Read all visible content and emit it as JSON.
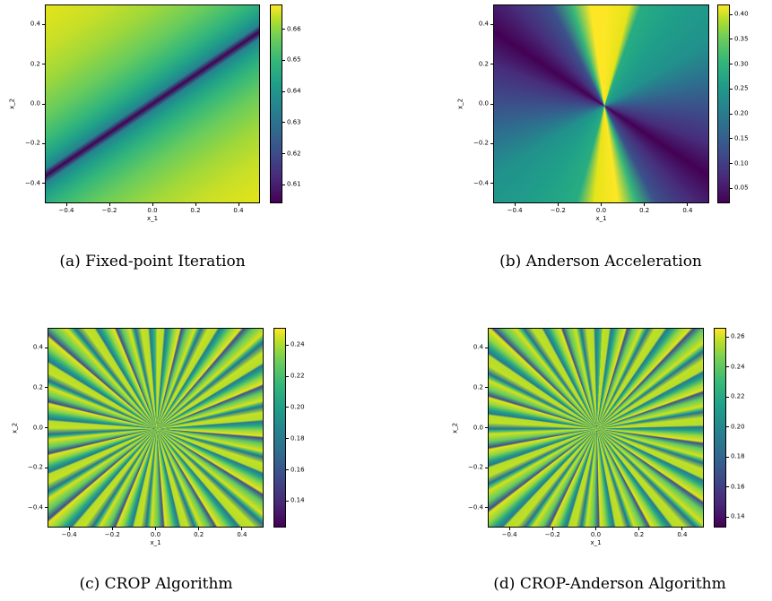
{
  "chart_data": [
    {
      "type": "heatmap",
      "panel": "a",
      "caption": "(a) Fixed-point Iteration",
      "xlabel": "x_1",
      "ylabel": "x_2",
      "xlim": [
        -0.5,
        0.5
      ],
      "ylim": [
        -0.5,
        0.5
      ],
      "x_ticks": [
        "−0.4",
        "−0.2",
        "0.0",
        "0.2",
        "0.4"
      ],
      "y_ticks": [
        "0.4",
        "0.2",
        "0.0",
        "−0.2",
        "−0.4"
      ],
      "colormap": "viridis",
      "colorbar_range": [
        0.604,
        0.668
      ],
      "colorbar_ticks": [
        "0.66",
        "0.65",
        "0.64",
        "0.63",
        "0.62",
        "0.61"
      ]
    },
    {
      "type": "heatmap",
      "panel": "b",
      "caption": "(b) Anderson Acceleration",
      "xlabel": "x_1",
      "ylabel": "x_2",
      "xlim": [
        -0.5,
        0.5
      ],
      "ylim": [
        -0.5,
        0.5
      ],
      "x_ticks": [
        "−0.4",
        "−0.2",
        "0.0",
        "0.2",
        "0.4"
      ],
      "y_ticks": [
        "0.4",
        "0.2",
        "0.0",
        "−0.2",
        "−0.4"
      ],
      "colormap": "viridis",
      "colorbar_range": [
        0.02,
        0.42
      ],
      "colorbar_ticks": [
        "0.40",
        "0.35",
        "0.30",
        "0.25",
        "0.20",
        "0.15",
        "0.10",
        "0.05"
      ]
    },
    {
      "type": "heatmap",
      "panel": "c",
      "caption": "(c) CROP Algorithm",
      "xlabel": "x_1",
      "ylabel": "x_2",
      "xlim": [
        -0.5,
        0.5
      ],
      "ylim": [
        -0.5,
        0.5
      ],
      "x_ticks": [
        "−0.4",
        "−0.2",
        "0.0",
        "0.2",
        "0.4"
      ],
      "y_ticks": [
        "0.4",
        "0.2",
        "0.0",
        "−0.2",
        "−0.4"
      ],
      "colormap": "viridis",
      "colorbar_range": [
        0.123,
        0.251
      ],
      "colorbar_ticks": [
        "0.24",
        "0.22",
        "0.20",
        "0.18",
        "0.16",
        "0.14"
      ]
    },
    {
      "type": "heatmap",
      "panel": "d",
      "caption": "(d) CROP-Anderson Algorithm",
      "xlabel": "x_1",
      "ylabel": "x_2",
      "xlim": [
        -0.5,
        0.5
      ],
      "ylim": [
        -0.5,
        0.5
      ],
      "x_ticks": [
        "−0.4",
        "−0.2",
        "0.0",
        "0.2",
        "0.4"
      ],
      "y_ticks": [
        "0.4",
        "0.2",
        "0.0",
        "−0.2",
        "−0.4"
      ],
      "colormap": "viridis",
      "colorbar_range": [
        0.133,
        0.266
      ],
      "colorbar_ticks": [
        "0.26",
        "0.24",
        "0.22",
        "0.20",
        "0.18",
        "0.16",
        "0.14"
      ]
    }
  ]
}
